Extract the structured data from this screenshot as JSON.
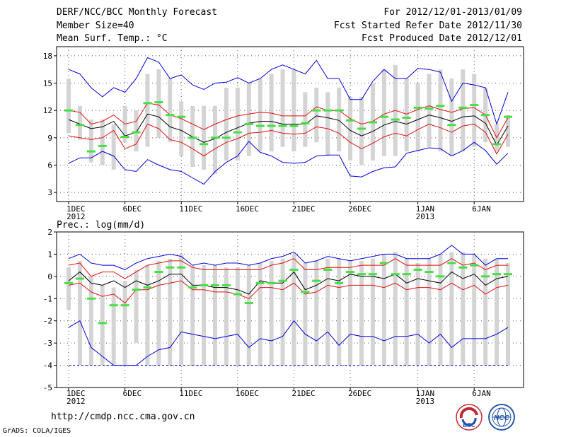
{
  "header": {
    "title": "DERF/NCC/BCC Monthly Forecast",
    "member_size": "Member Size=40",
    "variable": "Mean Surf. Temp.: °C",
    "period": "For 2012/12/01-2013/01/09",
    "started": "Fcst Started Refer Date 2012/11/30",
    "produced": "Fcst Produced Date 2012/12/01"
  },
  "footer": {
    "url": "http://cmdp.ncc.cma.gov.cn",
    "credit": "GrADS: COLA/IGES"
  },
  "logos": [
    {
      "name": "bcc-logo",
      "text": "BCC",
      "color": "#c0282d"
    },
    {
      "name": "ncc-logo",
      "text": "NCC",
      "color": "#1f4fa8"
    }
  ],
  "colors": {
    "box": "#d4d4d4",
    "ensemble_mean": "#000000",
    "spread": "#e01010",
    "extremes": "#0000e0",
    "observed": "#44e044",
    "grid": "#555555"
  },
  "chart_data": [
    {
      "type": "boxplot",
      "title": "Mean Surf. Temp.: °C",
      "ylim": [
        2,
        19
      ],
      "yticks": [
        3,
        6,
        9,
        12,
        15,
        18
      ],
      "xticks": [
        {
          "day": 1,
          "label": "1DEC",
          "sub": "2012"
        },
        {
          "day": 6,
          "label": "6DEC",
          "sub": ""
        },
        {
          "day": 11,
          "label": "11DEC",
          "sub": ""
        },
        {
          "day": 16,
          "label": "16DEC",
          "sub": ""
        },
        {
          "day": 21,
          "label": "21DEC",
          "sub": ""
        },
        {
          "day": 26,
          "label": "26DEC",
          "sub": ""
        },
        {
          "day": 32,
          "label": "1JAN",
          "sub": "2013"
        },
        {
          "day": 37,
          "label": "6JAN",
          "sub": ""
        }
      ],
      "x_range": [
        1,
        40
      ],
      "box_low": [
        9.5,
        8.8,
        6.3,
        6.0,
        5.5,
        8.5,
        7.5,
        8.0,
        9.0,
        8.5,
        7.0,
        5.8,
        5.5,
        5.0,
        6.5,
        6.5,
        7.0,
        7.5,
        7.5,
        8.0,
        7.5,
        8.0,
        8.5,
        7.0,
        7.5,
        6.5,
        6.0,
        6.5,
        7.0,
        7.0,
        7.5,
        7.5,
        8.0,
        7.5,
        7.0,
        7.5,
        8.0,
        8.5,
        7.5,
        8.0
      ],
      "box_high": [
        15.5,
        12.5,
        11.0,
        11.0,
        10.5,
        12.5,
        12.0,
        16.0,
        16.5,
        15.5,
        13.0,
        12.5,
        12.5,
        12.5,
        14.5,
        14.5,
        15.0,
        15.5,
        16.0,
        16.5,
        16.5,
        14.0,
        14.5,
        14.0,
        14.5,
        13.5,
        13.5,
        15.0,
        16.5,
        17.0,
        15.5,
        15.0,
        16.0,
        16.5,
        15.5,
        16.5,
        16.0,
        14.5,
        10.5,
        11.5
      ],
      "mean": [
        11.0,
        10.5,
        10.0,
        10.2,
        10.8,
        9.2,
        9.6,
        11.6,
        11.3,
        10.2,
        9.8,
        9.1,
        8.5,
        8.9,
        9.6,
        10.1,
        10.6,
        10.8,
        10.8,
        10.5,
        10.5,
        10.5,
        11.4,
        11.2,
        10.9,
        9.8,
        9.2,
        9.7,
        10.4,
        10.8,
        10.5,
        11.0,
        11.5,
        11.2,
        10.8,
        11.3,
        11.4,
        10.6,
        8.2,
        10.3
      ],
      "spread_upper": [
        12.0,
        11.8,
        10.5,
        10.8,
        11.5,
        10.5,
        10.8,
        12.8,
        12.6,
        11.5,
        11.1,
        10.5,
        9.9,
        10.5,
        11.0,
        11.4,
        11.6,
        11.8,
        11.7,
        11.4,
        11.4,
        11.4,
        12.4,
        12.0,
        12.0,
        11.1,
        10.5,
        10.8,
        11.6,
        12.0,
        11.6,
        12.1,
        12.5,
        12.1,
        11.8,
        12.2,
        12.3,
        11.5,
        9.0,
        11.2
      ],
      "spread_lower": [
        9.2,
        9.0,
        8.8,
        9.0,
        9.8,
        7.8,
        8.3,
        10.5,
        10.0,
        8.8,
        8.5,
        7.8,
        7.0,
        7.8,
        8.5,
        8.9,
        9.5,
        9.6,
        9.8,
        9.5,
        9.4,
        9.5,
        10.2,
        10.0,
        9.5,
        8.5,
        7.8,
        8.4,
        9.1,
        9.5,
        9.2,
        9.9,
        10.5,
        10.1,
        9.6,
        10.3,
        10.5,
        9.6,
        7.2,
        9.4
      ],
      "member_max": [
        16.5,
        16.0,
        14.5,
        13.5,
        14.5,
        14.0,
        15.5,
        17.8,
        17.3,
        15.5,
        15.9,
        14.8,
        14.3,
        15.0,
        15.1,
        15.6,
        15.0,
        15.5,
        16.5,
        17.0,
        16.5,
        16.0,
        17.5,
        15.5,
        15.5,
        13.2,
        13.2,
        15.2,
        16.5,
        15.5,
        15.5,
        16.6,
        16.5,
        16.2,
        13.0,
        15.0,
        14.8,
        14.5,
        10.5,
        14.0
      ],
      "member_min": [
        6.2,
        6.8,
        6.8,
        7.5,
        7.0,
        5.5,
        5.3,
        6.6,
        6.0,
        5.5,
        5.3,
        4.6,
        3.9,
        5.3,
        6.3,
        7.0,
        8.6,
        7.4,
        7.0,
        6.3,
        6.2,
        6.3,
        7.0,
        7.1,
        7.1,
        4.8,
        4.7,
        5.3,
        5.7,
        5.8,
        7.3,
        7.6,
        7.9,
        7.8,
        7.0,
        7.6,
        8.5,
        7.6,
        6.1,
        7.3
      ],
      "observed": [
        12.0,
        10.4,
        7.5,
        8.1,
        null,
        9.1,
        9.6,
        12.8,
        12.9,
        11.5,
        11.3,
        9.0,
        8.3,
        9.0,
        9.0,
        9.6,
        10.5,
        10.3,
        10.3,
        10.3,
        10.3,
        10.6,
        12.0,
        12.0,
        12.0,
        10.9,
        10.0,
        10.7,
        11.3,
        11.0,
        11.2,
        12.3,
        12.2,
        12.5,
        10.4,
        12.3,
        12.6,
        11.5,
        8.3,
        11.3
      ]
    },
    {
      "type": "boxplot",
      "title": "Prec.: log(mm/d)",
      "ylim": [
        -5,
        2
      ],
      "yticks": [
        -5,
        -4,
        -3,
        -2,
        -1,
        0,
        1,
        2
      ],
      "xticks": [
        {
          "day": 1,
          "label": "1DEC",
          "sub": "2012"
        },
        {
          "day": 6,
          "label": "6DEC",
          "sub": ""
        },
        {
          "day": 11,
          "label": "11DEC",
          "sub": ""
        },
        {
          "day": 16,
          "label": "16DEC",
          "sub": ""
        },
        {
          "day": 21,
          "label": "21DEC",
          "sub": ""
        },
        {
          "day": 26,
          "label": "26DEC",
          "sub": ""
        },
        {
          "day": 32,
          "label": "1JAN",
          "sub": "2013"
        },
        {
          "day": 37,
          "label": "6JAN",
          "sub": ""
        }
      ],
      "x_range": [
        1,
        40
      ],
      "box_low": [
        -1.5,
        -4.0,
        -4.0,
        -4.0,
        -4.0,
        -4.0,
        -3.0,
        -4.0,
        -4.0,
        -4.0,
        -4.0,
        -4.0,
        -4.0,
        -4.0,
        -4.0,
        -4.0,
        -4.0,
        -4.0,
        -4.0,
        -4.0,
        -4.0,
        -4.0,
        -4.0,
        -4.0,
        -4.0,
        -4.0,
        -4.0,
        -4.0,
        -4.0,
        -4.0,
        -4.0,
        -4.0,
        -4.0,
        -4.0,
        -4.0,
        -4.0,
        -4.0,
        -4.0,
        -4.0,
        -4.0
      ],
      "box_high": [
        0.4,
        0.7,
        0.0,
        -0.4,
        -0.5,
        -0.2,
        0.3,
        0.5,
        0.7,
        0.8,
        1.0,
        0.5,
        0.5,
        0.5,
        0.4,
        0.4,
        0.5,
        0.6,
        0.7,
        0.8,
        1.0,
        0.6,
        0.7,
        0.8,
        0.8,
        0.7,
        0.7,
        0.8,
        1.0,
        1.1,
        0.8,
        0.6,
        0.8,
        1.0,
        1.1,
        1.1,
        1.0,
        0.8,
        0.8,
        0.6
      ],
      "mean": [
        -0.2,
        0.2,
        -0.3,
        -0.4,
        -0.2,
        -0.5,
        -0.2,
        -0.4,
        -0.2,
        0.1,
        0.1,
        -0.4,
        -0.4,
        -0.5,
        -0.5,
        -0.6,
        -0.8,
        -0.2,
        -0.3,
        -0.3,
        0.2,
        -0.6,
        -0.4,
        -0.1,
        -0.2,
        0.1,
        0.0,
        0.0,
        -0.1,
        0.1,
        -0.3,
        -0.1,
        -0.2,
        -0.3,
        0.2,
        -0.1,
        0.1,
        -0.4,
        -0.1,
        0.0
      ],
      "spread_upper": [
        0.5,
        0.6,
        0.0,
        0.2,
        0.2,
        -0.1,
        0.2,
        0.5,
        0.6,
        0.7,
        0.7,
        0.4,
        0.3,
        0.3,
        0.3,
        0.3,
        0.3,
        0.3,
        0.5,
        0.6,
        0.8,
        0.3,
        0.3,
        0.4,
        0.4,
        0.4,
        0.5,
        0.5,
        0.5,
        0.8,
        0.5,
        0.5,
        0.5,
        0.5,
        0.8,
        0.5,
        0.6,
        0.3,
        0.5,
        0.5
      ],
      "spread_lower": [
        -0.4,
        -0.3,
        -0.7,
        -0.9,
        -0.8,
        -1.2,
        -0.6,
        -0.6,
        -0.4,
        -0.3,
        -0.2,
        -0.6,
        -0.6,
        -0.7,
        -0.7,
        -0.8,
        -1.0,
        -0.5,
        -0.5,
        -0.6,
        -0.3,
        -0.8,
        -0.7,
        -0.4,
        -0.5,
        -0.4,
        -0.4,
        -0.4,
        -0.5,
        -0.3,
        -0.6,
        -0.5,
        -0.5,
        -0.6,
        -0.3,
        -0.6,
        -0.4,
        -0.8,
        -0.5,
        -0.4
      ],
      "member_max": [
        0.8,
        1.0,
        0.6,
        0.5,
        0.5,
        0.3,
        0.6,
        0.8,
        0.9,
        1.0,
        0.9,
        0.5,
        0.6,
        0.5,
        0.6,
        0.6,
        0.5,
        0.6,
        0.8,
        0.9,
        1.1,
        0.6,
        0.7,
        0.9,
        0.8,
        0.7,
        0.8,
        0.9,
        1.0,
        1.0,
        0.8,
        0.8,
        0.8,
        1.0,
        1.4,
        1.0,
        1.0,
        0.5,
        0.8,
        0.8
      ],
      "member_min": [
        -2.3,
        -2.0,
        -3.2,
        -3.6,
        -4.0,
        -4.0,
        -4.0,
        -3.6,
        -3.3,
        -3.2,
        -2.5,
        -2.6,
        -2.7,
        -2.8,
        -2.7,
        -2.6,
        -3.2,
        -2.8,
        -2.9,
        -2.7,
        -2.0,
        -2.6,
        -2.9,
        -2.5,
        -3.1,
        -2.6,
        -2.7,
        -2.7,
        -2.9,
        -2.7,
        -2.7,
        -2.6,
        -3.0,
        -2.6,
        -3.2,
        -2.8,
        -2.8,
        -2.8,
        -2.6,
        -2.3
      ],
      "observed": [
        -0.3,
        -0.1,
        -1.0,
        -2.1,
        -1.3,
        -1.3,
        -0.6,
        -0.5,
        0.2,
        0.4,
        0.4,
        -0.5,
        -0.4,
        -0.4,
        -0.4,
        -0.8,
        -1.2,
        -0.3,
        -0.3,
        -0.2,
        0.3,
        -0.7,
        -0.2,
        0.3,
        -0.3,
        0.2,
        0.1,
        0.1,
        0.6,
        0.1,
        0.1,
        0.3,
        0.2,
        0.0,
        0.6,
        0.4,
        0.5,
        0.0,
        0.1,
        0.1
      ]
    }
  ]
}
